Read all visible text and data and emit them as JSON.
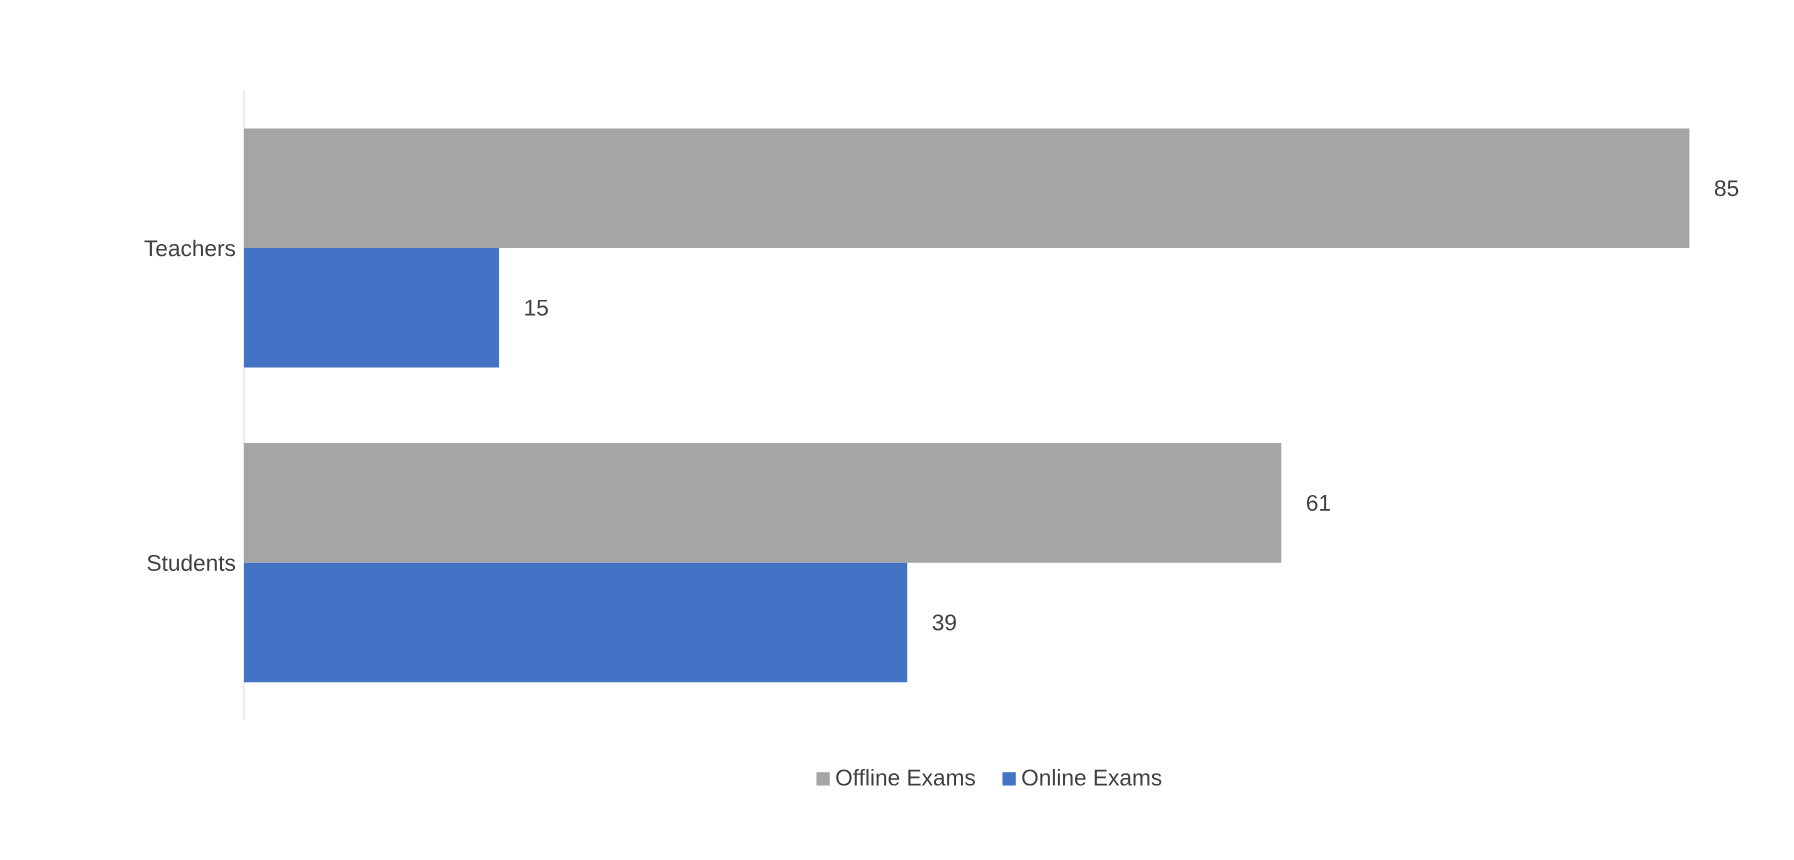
{
  "chart_data": {
    "type": "bar",
    "orientation": "horizontal",
    "categories": [
      "Teachers",
      "Students"
    ],
    "series": [
      {
        "name": "Offline Exams",
        "color": "#a5a5a5",
        "values": [
          85,
          61
        ]
      },
      {
        "name": "Online Exams",
        "color": "#4472c4",
        "values": [
          15,
          39
        ]
      }
    ],
    "data_labels": true,
    "legend": "bottom"
  }
}
